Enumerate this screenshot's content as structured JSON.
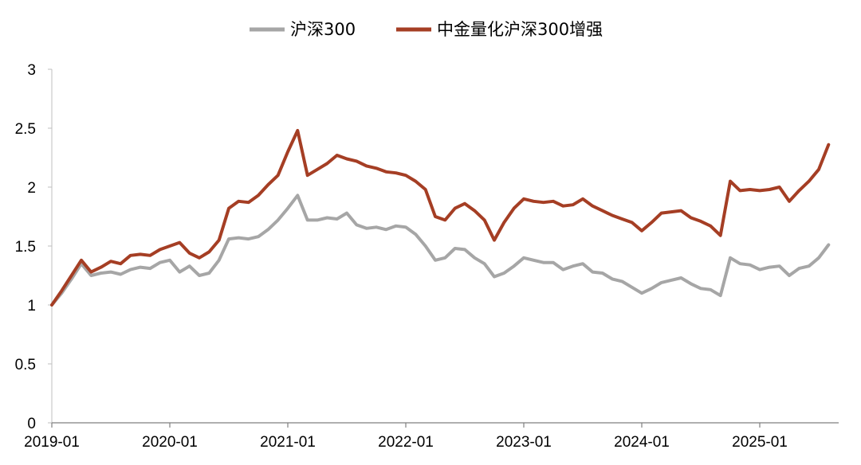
{
  "chart_data": {
    "type": "line",
    "title": "",
    "xlabel": "",
    "ylabel": "",
    "ylim": [
      0,
      3
    ],
    "yticks": [
      "0",
      "0.5",
      "1",
      "1.5",
      "2",
      "2.5",
      "3"
    ],
    "xticks": [
      "2019-01",
      "2020-01",
      "2021-01",
      "2022-01",
      "2023-01",
      "2024-01",
      "2025-01"
    ],
    "xrange": [
      "2019-01",
      "2025-08"
    ],
    "grid": false,
    "legend_position": "top-center",
    "series": [
      {
        "name": "沪深300",
        "color": "#a6a6a6",
        "points": [
          [
            "2019-01",
            1.0
          ],
          [
            "2019-02",
            1.1
          ],
          [
            "2019-03",
            1.22
          ],
          [
            "2019-04",
            1.35
          ],
          [
            "2019-05",
            1.25
          ],
          [
            "2019-06",
            1.27
          ],
          [
            "2019-07",
            1.28
          ],
          [
            "2019-08",
            1.26
          ],
          [
            "2019-09",
            1.3
          ],
          [
            "2019-10",
            1.32
          ],
          [
            "2019-11",
            1.31
          ],
          [
            "2019-12",
            1.36
          ],
          [
            "2020-01",
            1.38
          ],
          [
            "2020-02",
            1.28
          ],
          [
            "2020-03",
            1.33
          ],
          [
            "2020-04",
            1.25
          ],
          [
            "2020-05",
            1.27
          ],
          [
            "2020-06",
            1.38
          ],
          [
            "2020-07",
            1.56
          ],
          [
            "2020-08",
            1.57
          ],
          [
            "2020-09",
            1.56
          ],
          [
            "2020-10",
            1.58
          ],
          [
            "2020-11",
            1.64
          ],
          [
            "2020-12",
            1.72
          ],
          [
            "2021-01",
            1.82
          ],
          [
            "2021-02",
            1.93
          ],
          [
            "2021-03",
            1.72
          ],
          [
            "2021-04",
            1.72
          ],
          [
            "2021-05",
            1.74
          ],
          [
            "2021-06",
            1.73
          ],
          [
            "2021-07",
            1.78
          ],
          [
            "2021-08",
            1.68
          ],
          [
            "2021-09",
            1.65
          ],
          [
            "2021-10",
            1.66
          ],
          [
            "2021-11",
            1.64
          ],
          [
            "2021-12",
            1.67
          ],
          [
            "2022-01",
            1.66
          ],
          [
            "2022-02",
            1.6
          ],
          [
            "2022-03",
            1.5
          ],
          [
            "2022-04",
            1.38
          ],
          [
            "2022-05",
            1.4
          ],
          [
            "2022-06",
            1.48
          ],
          [
            "2022-07",
            1.47
          ],
          [
            "2022-08",
            1.4
          ],
          [
            "2022-09",
            1.35
          ],
          [
            "2022-10",
            1.24
          ],
          [
            "2022-11",
            1.27
          ],
          [
            "2022-12",
            1.33
          ],
          [
            "2023-01",
            1.4
          ],
          [
            "2023-02",
            1.38
          ],
          [
            "2023-03",
            1.36
          ],
          [
            "2023-04",
            1.36
          ],
          [
            "2023-05",
            1.3
          ],
          [
            "2023-06",
            1.33
          ],
          [
            "2023-07",
            1.35
          ],
          [
            "2023-08",
            1.28
          ],
          [
            "2023-09",
            1.27
          ],
          [
            "2023-10",
            1.22
          ],
          [
            "2023-11",
            1.2
          ],
          [
            "2023-12",
            1.15
          ],
          [
            "2024-01",
            1.1
          ],
          [
            "2024-02",
            1.14
          ],
          [
            "2024-03",
            1.19
          ],
          [
            "2024-04",
            1.21
          ],
          [
            "2024-05",
            1.23
          ],
          [
            "2024-06",
            1.18
          ],
          [
            "2024-07",
            1.14
          ],
          [
            "2024-08",
            1.13
          ],
          [
            "2024-09",
            1.08
          ],
          [
            "2024-10",
            1.4
          ],
          [
            "2024-11",
            1.35
          ],
          [
            "2024-12",
            1.34
          ],
          [
            "2025-01",
            1.3
          ],
          [
            "2025-02",
            1.32
          ],
          [
            "2025-03",
            1.33
          ],
          [
            "2025-04",
            1.25
          ],
          [
            "2025-05",
            1.31
          ],
          [
            "2025-06",
            1.33
          ],
          [
            "2025-07",
            1.4
          ],
          [
            "2025-08",
            1.51
          ]
        ]
      },
      {
        "name": "中金量化沪深300增强",
        "color": "#a53e24",
        "points": [
          [
            "2019-01",
            1.0
          ],
          [
            "2019-02",
            1.12
          ],
          [
            "2019-03",
            1.25
          ],
          [
            "2019-04",
            1.38
          ],
          [
            "2019-05",
            1.28
          ],
          [
            "2019-06",
            1.32
          ],
          [
            "2019-07",
            1.37
          ],
          [
            "2019-08",
            1.35
          ],
          [
            "2019-09",
            1.42
          ],
          [
            "2019-10",
            1.43
          ],
          [
            "2019-11",
            1.42
          ],
          [
            "2019-12",
            1.47
          ],
          [
            "2020-01",
            1.5
          ],
          [
            "2020-02",
            1.53
          ],
          [
            "2020-03",
            1.44
          ],
          [
            "2020-04",
            1.4
          ],
          [
            "2020-05",
            1.45
          ],
          [
            "2020-06",
            1.55
          ],
          [
            "2020-07",
            1.82
          ],
          [
            "2020-08",
            1.88
          ],
          [
            "2020-09",
            1.87
          ],
          [
            "2020-10",
            1.93
          ],
          [
            "2020-11",
            2.02
          ],
          [
            "2020-12",
            2.1
          ],
          [
            "2021-01",
            2.3
          ],
          [
            "2021-02",
            2.48
          ],
          [
            "2021-03",
            2.1
          ],
          [
            "2021-04",
            2.15
          ],
          [
            "2021-05",
            2.2
          ],
          [
            "2021-06",
            2.27
          ],
          [
            "2021-07",
            2.24
          ],
          [
            "2021-08",
            2.22
          ],
          [
            "2021-09",
            2.18
          ],
          [
            "2021-10",
            2.16
          ],
          [
            "2021-11",
            2.13
          ],
          [
            "2021-12",
            2.12
          ],
          [
            "2022-01",
            2.1
          ],
          [
            "2022-02",
            2.05
          ],
          [
            "2022-03",
            1.98
          ],
          [
            "2022-04",
            1.75
          ],
          [
            "2022-05",
            1.72
          ],
          [
            "2022-06",
            1.82
          ],
          [
            "2022-07",
            1.86
          ],
          [
            "2022-08",
            1.8
          ],
          [
            "2022-09",
            1.72
          ],
          [
            "2022-10",
            1.55
          ],
          [
            "2022-11",
            1.7
          ],
          [
            "2022-12",
            1.82
          ],
          [
            "2023-01",
            1.9
          ],
          [
            "2023-02",
            1.88
          ],
          [
            "2023-03",
            1.87
          ],
          [
            "2023-04",
            1.88
          ],
          [
            "2023-05",
            1.84
          ],
          [
            "2023-06",
            1.85
          ],
          [
            "2023-07",
            1.9
          ],
          [
            "2023-08",
            1.84
          ],
          [
            "2023-09",
            1.8
          ],
          [
            "2023-10",
            1.76
          ],
          [
            "2023-11",
            1.73
          ],
          [
            "2023-12",
            1.7
          ],
          [
            "2024-01",
            1.63
          ],
          [
            "2024-02",
            1.7
          ],
          [
            "2024-03",
            1.78
          ],
          [
            "2024-04",
            1.79
          ],
          [
            "2024-05",
            1.8
          ],
          [
            "2024-06",
            1.74
          ],
          [
            "2024-07",
            1.71
          ],
          [
            "2024-08",
            1.67
          ],
          [
            "2024-09",
            1.59
          ],
          [
            "2024-10",
            2.05
          ],
          [
            "2024-11",
            1.97
          ],
          [
            "2024-12",
            1.98
          ],
          [
            "2025-01",
            1.97
          ],
          [
            "2025-02",
            1.98
          ],
          [
            "2025-03",
            2.0
          ],
          [
            "2025-04",
            1.88
          ],
          [
            "2025-05",
            1.97
          ],
          [
            "2025-06",
            2.05
          ],
          [
            "2025-07",
            2.15
          ],
          [
            "2025-08",
            2.36
          ]
        ]
      }
    ]
  }
}
